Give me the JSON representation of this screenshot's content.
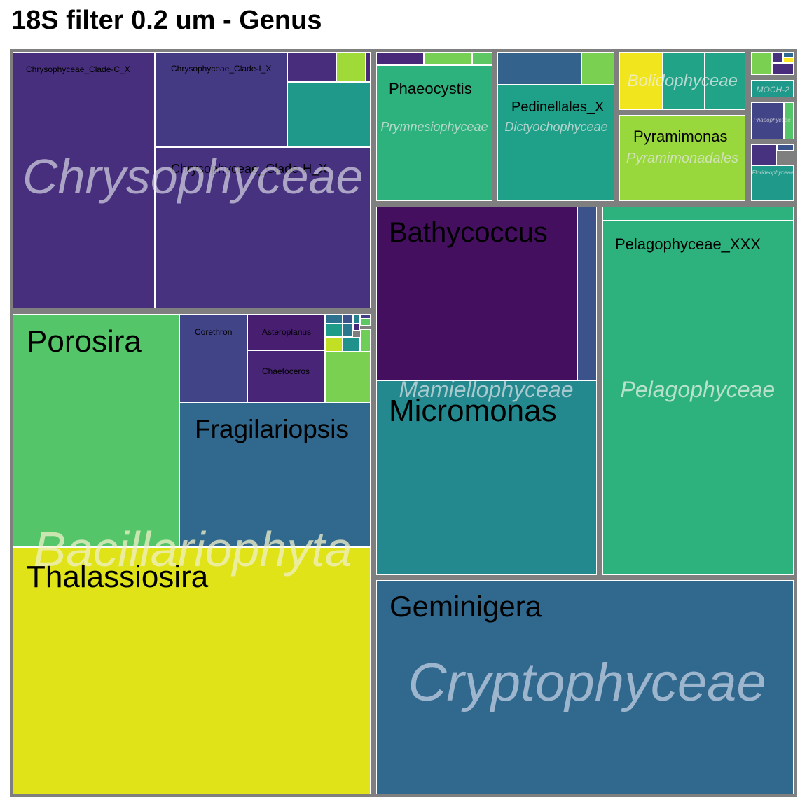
{
  "chart_data": {
    "type": "treemap",
    "title": "18S filter 0.2 um - Genus",
    "groups": [
      {
        "name": "Chrysophyceae",
        "genera": [
          {
            "name": "Chrysophyceae_Clade-C_X"
          },
          {
            "name": "Chrysophyceae_Clade-I_X"
          },
          {
            "name": "Chrysophyceae_Clade-H_X"
          }
        ]
      },
      {
        "name": "Bacillariophyta",
        "genera": [
          {
            "name": "Porosira"
          },
          {
            "name": "Corethron"
          },
          {
            "name": "Asteroplanus"
          },
          {
            "name": "Chaetoceros"
          },
          {
            "name": "Fragilariopsis"
          },
          {
            "name": "Thalassiosira"
          }
        ]
      },
      {
        "name": "Prymnesiophyceae",
        "genera": [
          {
            "name": "Phaeocystis"
          }
        ]
      },
      {
        "name": "Dictyochophyceae",
        "genera": [
          {
            "name": "Pedinellales_X"
          }
        ]
      },
      {
        "name": "Bolidophyceae",
        "genera": []
      },
      {
        "name": "Pyramimonadales",
        "genera": [
          {
            "name": "Pyramimonas"
          }
        ]
      },
      {
        "name": "MOCH-2",
        "genera": []
      },
      {
        "name": "Phaeophyceae",
        "genera": []
      },
      {
        "name": "Florideophyceae",
        "genera": []
      },
      {
        "name": "Mamiellophyceae",
        "genera": [
          {
            "name": "Bathycoccus"
          },
          {
            "name": "Micromonas"
          }
        ]
      },
      {
        "name": "Pelagophyceae",
        "genera": [
          {
            "name": "Pelagophyceae_XXX"
          }
        ]
      },
      {
        "name": "Cryptophyceae",
        "genera": [
          {
            "name": "Geminigera"
          }
        ]
      }
    ]
  }
}
